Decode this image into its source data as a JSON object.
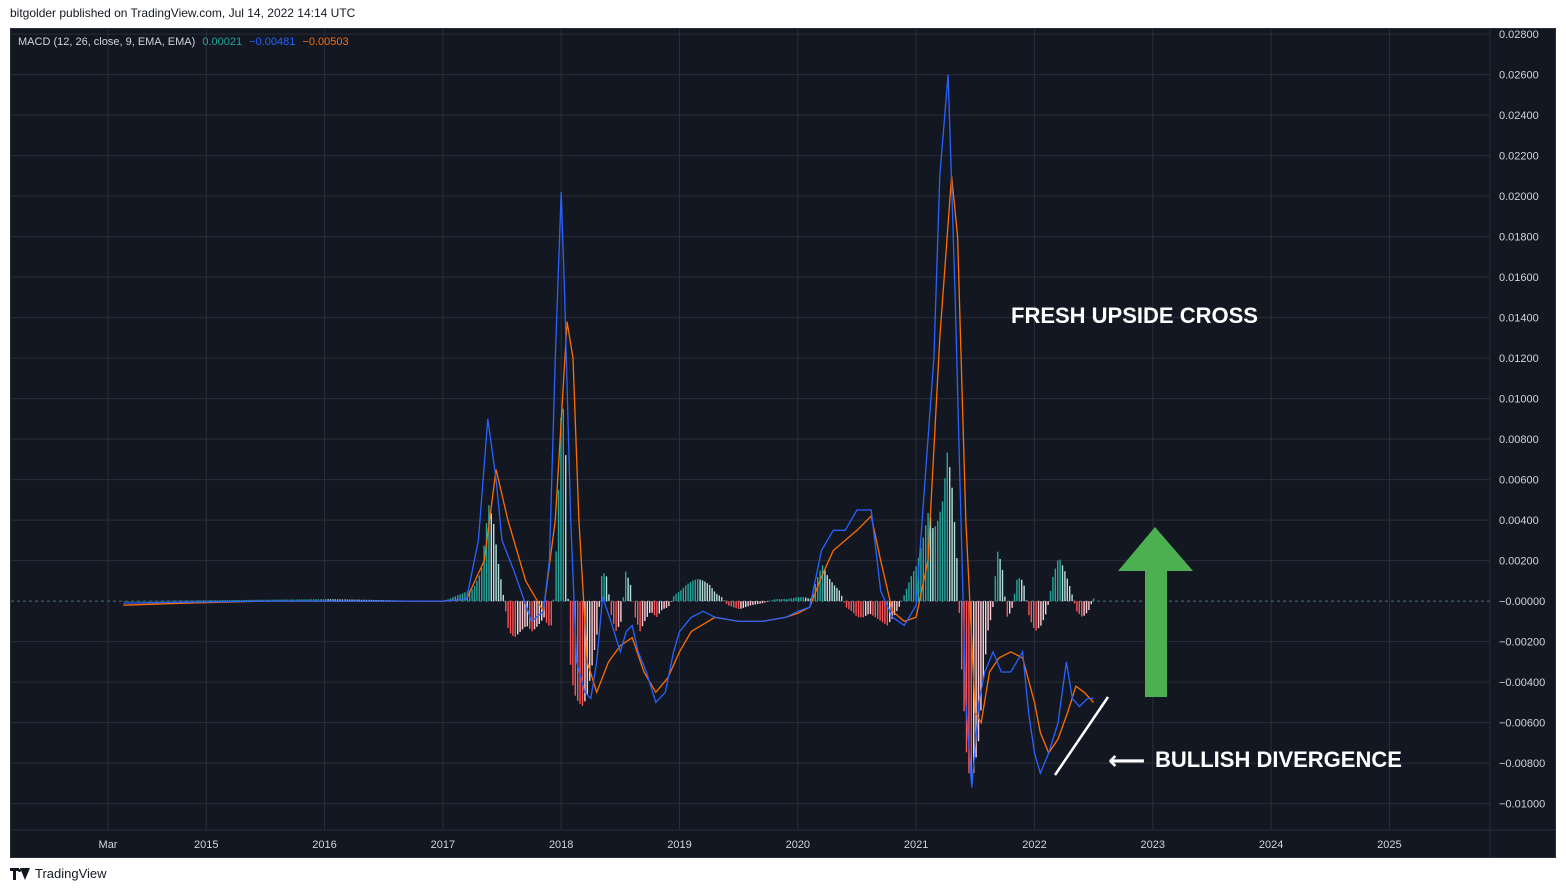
{
  "header": {
    "published": "bitgolder published on TradingView.com, Jul 14, 2022 14:14 UTC"
  },
  "legend": {
    "indicator": "MACD (12, 26, close, 9, EMA, EMA)",
    "hist_value": "0.00021",
    "macd_value": "−0.00481",
    "signal_value": "−0.00503"
  },
  "annotations": {
    "cross": "FRESH UPSIDE CROSS",
    "divergence": "BULLISH DIVERGENCE",
    "divergence_arrow": "⟵"
  },
  "footer": {
    "brand": "TradingView",
    "logo": "tradingview-logo-icon"
  },
  "colors": {
    "background": "#131722",
    "grid": "#2a2e39",
    "macd": "#2962ff",
    "signal": "#ff6d00",
    "hist_up_strong": "#26a69a",
    "hist_up_weak": "#b2dfdb",
    "hist_down_strong": "#ff5252",
    "hist_down_weak": "#ffcdd2",
    "arrow": "#4caf50",
    "annotation": "#ffffff"
  },
  "chart_data": {
    "type": "line",
    "x_ticks": [
      "Mar",
      "2015",
      "2016",
      "2017",
      "2018",
      "2019",
      "2020",
      "2021",
      "2022",
      "2023",
      "2024",
      "2025"
    ],
    "x_tick_years": [
      2014.17,
      2015,
      2016,
      2017,
      2018,
      2019,
      2020,
      2021,
      2022,
      2023,
      2024,
      2025
    ],
    "xlim": [
      2013.35,
      2025.85
    ],
    "ylim": [
      -0.0113,
      0.0283
    ],
    "y_ticks": [
      0.028,
      0.026,
      0.024,
      0.022,
      0.02,
      0.018,
      0.016,
      0.014,
      0.012,
      0.01,
      0.008,
      0.006,
      0.004,
      0.002,
      0,
      -0.002,
      -0.004,
      -0.006,
      -0.008,
      -0.01
    ],
    "y_tick_labels": [
      "0.02800",
      "0.02600",
      "0.02400",
      "0.02200",
      "0.02000",
      "0.01800",
      "0.01600",
      "0.01400",
      "0.01200",
      "0.01000",
      "0.00800",
      "0.00600",
      "0.00400",
      "0.00200",
      "−0.00000",
      "−0.00200",
      "−0.00400",
      "−0.00600",
      "−0.00800",
      "−0.01000"
    ],
    "grid": true,
    "series": [
      {
        "name": "MACD",
        "x": [
          2014.3,
          2014.8,
          2015.5,
          2016.0,
          2016.5,
          2017.0,
          2017.2,
          2017.3,
          2017.38,
          2017.45,
          2017.5,
          2017.6,
          2017.75,
          2017.85,
          2017.9,
          2017.95,
          2018.0,
          2018.03,
          2018.08,
          2018.13,
          2018.2,
          2018.25,
          2018.3,
          2018.35,
          2018.42,
          2018.5,
          2018.55,
          2018.6,
          2018.65,
          2018.72,
          2018.8,
          2018.88,
          2018.95,
          2019.0,
          2019.1,
          2019.2,
          2019.3,
          2019.5,
          2019.7,
          2019.9,
          2020.0,
          2020.1,
          2020.2,
          2020.3,
          2020.4,
          2020.5,
          2020.62,
          2020.7,
          2020.8,
          2020.9,
          2021.0,
          2021.1,
          2021.15,
          2021.2,
          2021.27,
          2021.33,
          2021.37,
          2021.42,
          2021.47,
          2021.53,
          2021.58,
          2021.65,
          2021.72,
          2021.8,
          2021.9,
          2021.95,
          2022.0,
          2022.05,
          2022.12,
          2022.2,
          2022.27,
          2022.32,
          2022.38,
          2022.45,
          2022.5
        ],
        "values": [
          -0.0001,
          -5e-05,
          0.0,
          0.0,
          0.0,
          0.0,
          0.0001,
          0.003,
          0.009,
          0.006,
          0.003,
          0.0015,
          -0.001,
          -0.0005,
          0.002,
          0.012,
          0.0202,
          0.015,
          0.004,
          -0.003,
          -0.0045,
          -0.0048,
          -0.003,
          0.0002,
          -0.001,
          -0.0025,
          -0.0015,
          -0.0012,
          -0.0025,
          -0.0035,
          -0.005,
          -0.0045,
          -0.0025,
          -0.0015,
          -0.0008,
          -0.0005,
          -0.0008,
          -0.001,
          -0.001,
          -0.0008,
          -0.0005,
          -0.0003,
          0.0025,
          0.0035,
          0.0035,
          0.0045,
          0.0045,
          0.0005,
          -0.0008,
          -0.0012,
          -0.0002,
          0.008,
          0.012,
          0.021,
          0.026,
          0.015,
          0.006,
          -0.005,
          -0.0092,
          -0.005,
          -0.0035,
          -0.0025,
          -0.0035,
          -0.0035,
          -0.0025,
          -0.0055,
          -0.0075,
          -0.0085,
          -0.0075,
          -0.006,
          -0.003,
          -0.0048,
          -0.0052,
          -0.0048,
          -0.0048
        ]
      },
      {
        "name": "Signal",
        "x": [
          2014.3,
          2014.8,
          2015.5,
          2016.0,
          2016.5,
          2017.0,
          2017.2,
          2017.35,
          2017.45,
          2017.55,
          2017.7,
          2017.85,
          2017.95,
          2018.05,
          2018.1,
          2018.15,
          2018.22,
          2018.3,
          2018.4,
          2018.5,
          2018.6,
          2018.7,
          2018.8,
          2018.9,
          2019.0,
          2019.1,
          2019.3,
          2019.5,
          2019.7,
          2019.9,
          2020.0,
          2020.1,
          2020.2,
          2020.3,
          2020.4,
          2020.5,
          2020.62,
          2020.7,
          2020.8,
          2020.9,
          2021.0,
          2021.1,
          2021.2,
          2021.3,
          2021.35,
          2021.42,
          2021.5,
          2021.55,
          2021.62,
          2021.7,
          2021.8,
          2021.9,
          2022.0,
          2022.05,
          2022.12,
          2022.2,
          2022.28,
          2022.35,
          2022.42,
          2022.5
        ],
        "values": [
          -0.0002,
          -0.0001,
          0.0,
          0.0,
          0.0,
          0.0,
          0.0001,
          0.002,
          0.0065,
          0.004,
          0.001,
          -0.0005,
          0.004,
          0.0138,
          0.012,
          0.004,
          -0.003,
          -0.0045,
          -0.003,
          -0.0022,
          -0.0018,
          -0.0035,
          -0.0045,
          -0.0038,
          -0.0025,
          -0.0015,
          -0.0008,
          -0.001,
          -0.001,
          -0.0008,
          -0.0006,
          -0.0003,
          0.0012,
          0.0025,
          0.003,
          0.0035,
          0.0042,
          0.002,
          -0.0005,
          -0.001,
          -0.0008,
          0.002,
          0.013,
          0.021,
          0.018,
          0.004,
          -0.0055,
          -0.006,
          -0.0035,
          -0.0028,
          -0.0025,
          -0.0028,
          -0.005,
          -0.0065,
          -0.0075,
          -0.0068,
          -0.0055,
          -0.0042,
          -0.0045,
          -0.005
        ]
      }
    ],
    "histogram": {
      "name": "Histogram",
      "x": [
        2014.3,
        2016.0,
        2017.0,
        2017.25,
        2017.32,
        2017.38,
        2017.42,
        2017.46,
        2017.5,
        2017.55,
        2017.6,
        2017.65,
        2017.7,
        2017.75,
        2017.8,
        2017.85,
        2017.88,
        2017.92,
        2017.96,
        2018.0,
        2018.03,
        2018.06,
        2018.1,
        2018.14,
        2018.18,
        2018.22,
        2018.26,
        2018.3,
        2018.34,
        2018.38,
        2018.42,
        2018.46,
        2018.5,
        2018.54,
        2018.58,
        2018.62,
        2018.66,
        2018.7,
        2018.75,
        2018.8,
        2018.85,
        2018.9,
        2018.95,
        2019.0,
        2019.05,
        2019.1,
        2019.15,
        2019.2,
        2019.25,
        2019.3,
        2019.35,
        2019.4,
        2019.45,
        2019.5,
        2019.6,
        2019.7,
        2019.8,
        2019.9,
        2020.0,
        2020.05,
        2020.1,
        2020.15,
        2020.2,
        2020.25,
        2020.3,
        2020.35,
        2020.4,
        2020.45,
        2020.5,
        2020.55,
        2020.6,
        2020.65,
        2020.7,
        2020.75,
        2020.8,
        2020.85,
        2020.9,
        2020.95,
        2021.0,
        2021.05,
        2021.1,
        2021.14,
        2021.18,
        2021.22,
        2021.26,
        2021.3,
        2021.34,
        2021.38,
        2021.42,
        2021.45,
        2021.48,
        2021.52,
        2021.56,
        2021.6,
        2021.64,
        2021.68,
        2021.72,
        2021.76,
        2021.8,
        2021.85,
        2021.9,
        2021.95,
        2022.0,
        2022.05,
        2022.1,
        2022.15,
        2022.2,
        2022.25,
        2022.3,
        2022.35,
        2022.4,
        2022.45,
        2022.5
      ],
      "values": [
        0.0,
        0.0001,
        0.0,
        0.0006,
        0.0015,
        0.0048,
        0.004,
        0.002,
        0.0005,
        -0.0015,
        -0.0018,
        -0.0015,
        -0.0012,
        -0.0015,
        -0.0012,
        -0.0008,
        -0.0012,
        -0.0012,
        0.0035,
        0.0105,
        0.008,
        -0.0025,
        -0.0045,
        -0.005,
        -0.0052,
        -0.0045,
        -0.003,
        -0.0015,
        0.0015,
        0.0012,
        -0.0008,
        -0.0015,
        -0.001,
        0.0015,
        0.0008,
        -0.0008,
        -0.0015,
        -0.001,
        -0.0005,
        -0.0008,
        -0.0004,
        -0.0003,
        0.0003,
        0.0005,
        0.0008,
        0.001,
        0.0011,
        0.001,
        0.0008,
        0.0004,
        0.0002,
        -0.0002,
        -0.0003,
        -0.0004,
        -0.0002,
        -0.0001,
        0.0001,
        0.0001,
        0.0002,
        0.0002,
        0.0001,
        0.001,
        0.0018,
        0.0012,
        0.0008,
        0.0005,
        -0.0003,
        -0.0005,
        -0.0008,
        -0.0008,
        -0.0006,
        -0.0008,
        -0.001,
        -0.0012,
        -0.0008,
        -0.0003,
        0.0004,
        0.0012,
        0.0018,
        0.003,
        0.0045,
        0.0035,
        0.004,
        0.005,
        0.0075,
        0.0055,
        0.002,
        -0.0035,
        -0.0075,
        -0.009,
        -0.0085,
        -0.007,
        -0.004,
        -0.0015,
        -0.0005,
        0.0025,
        0.0018,
        -0.0008,
        -0.0005,
        0.0012,
        0.001,
        -0.0008,
        -0.0015,
        -0.0012,
        -0.0005,
        0.0012,
        0.0022,
        0.0015,
        0.0006,
        -0.0005,
        -0.0008,
        -0.0005,
        0.00021
      ]
    }
  }
}
